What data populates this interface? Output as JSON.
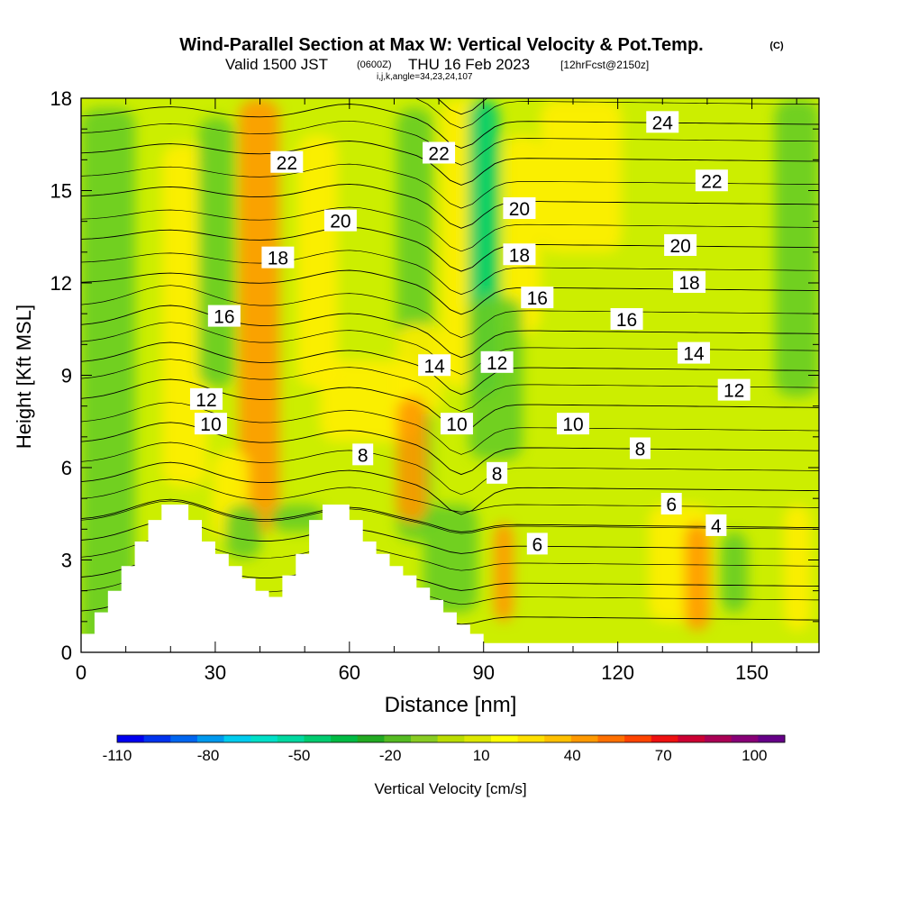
{
  "chart_data": {
    "type": "heatmap",
    "title": "Wind-Parallel Section at Max W: Vertical Velocity & Pot.Temp.",
    "title_mark": "(C)",
    "subtitle": {
      "main_a": "Valid 1500 JST",
      "utc": "(0600Z)",
      "main_b": "THU 16 Feb 2023",
      "fcst": "[12hrFcst@2150z]",
      "indices": "i,j,k,angle=34,23,24,107"
    },
    "xlabel": "Distance [nm]",
    "ylabel": "Height [Kft MSL]",
    "xlim": [
      0,
      165
    ],
    "ylim": [
      0,
      18
    ],
    "xticks": [
      0,
      30,
      60,
      90,
      120,
      150
    ],
    "yticks": [
      0,
      3,
      6,
      9,
      12,
      15,
      18
    ],
    "colorbar": {
      "label": "Vertical Velocity [cm/s]",
      "range": [
        -110,
        110
      ],
      "tick_values": [
        -110,
        -80,
        -50,
        -20,
        10,
        40,
        70,
        100
      ],
      "colors": [
        "#0000f0",
        "#0033ee",
        "#0066f0",
        "#0099ee",
        "#00ccee",
        "#00e0c8",
        "#00d9a0",
        "#00cc70",
        "#00bb44",
        "#22aa22",
        "#55bb22",
        "#88cc22",
        "#bbdd00",
        "#dde800",
        "#ffff00",
        "#ffe000",
        "#ffc000",
        "#ff9900",
        "#ff7000",
        "#ff4400",
        "#ee1111",
        "#cc0033",
        "#aa0055",
        "#880077",
        "#660088"
      ]
    },
    "contour_labels": [
      {
        "x": 46,
        "y": 15.9,
        "text": "22"
      },
      {
        "x": 80,
        "y": 16.2,
        "text": "22"
      },
      {
        "x": 141,
        "y": 15.3,
        "text": "22"
      },
      {
        "x": 130,
        "y": 17.2,
        "text": "24"
      },
      {
        "x": 58,
        "y": 14.0,
        "text": "20"
      },
      {
        "x": 98,
        "y": 14.4,
        "text": "20"
      },
      {
        "x": 134,
        "y": 13.2,
        "text": "20"
      },
      {
        "x": 44,
        "y": 12.8,
        "text": "18"
      },
      {
        "x": 98,
        "y": 12.9,
        "text": "18"
      },
      {
        "x": 136,
        "y": 12.0,
        "text": "18"
      },
      {
        "x": 32,
        "y": 10.9,
        "text": "16"
      },
      {
        "x": 102,
        "y": 11.5,
        "text": "16"
      },
      {
        "x": 122,
        "y": 10.8,
        "text": "16"
      },
      {
        "x": 28,
        "y": 8.2,
        "text": "12"
      },
      {
        "x": 93,
        "y": 9.4,
        "text": "12"
      },
      {
        "x": 146,
        "y": 8.5,
        "text": "12"
      },
      {
        "x": 29,
        "y": 7.4,
        "text": "10"
      },
      {
        "x": 84,
        "y": 7.4,
        "text": "10"
      },
      {
        "x": 110,
        "y": 7.4,
        "text": "10"
      },
      {
        "x": 79,
        "y": 9.3,
        "text": "14"
      },
      {
        "x": 137,
        "y": 9.7,
        "text": "14"
      },
      {
        "x": 63,
        "y": 6.4,
        "text": "8"
      },
      {
        "x": 93,
        "y": 5.8,
        "text": "8"
      },
      {
        "x": 125,
        "y": 6.6,
        "text": "8"
      },
      {
        "x": 102,
        "y": 3.5,
        "text": "6"
      },
      {
        "x": 132,
        "y": 4.8,
        "text": "6"
      },
      {
        "x": 142,
        "y": 4.1,
        "text": "4"
      }
    ],
    "contour_levels": [
      0,
      2,
      4,
      6,
      8,
      10,
      12,
      14,
      16,
      18,
      20,
      22,
      24,
      26,
      28
    ],
    "colors": {
      "background_field": "#ccee00",
      "positive_field": "#ffee00",
      "strong_positive": "#ff9900",
      "negative_field": "#66cc22",
      "strong_negative": "#00cc70",
      "terrain": "#ffffff",
      "contour_line": "#000000"
    }
  }
}
